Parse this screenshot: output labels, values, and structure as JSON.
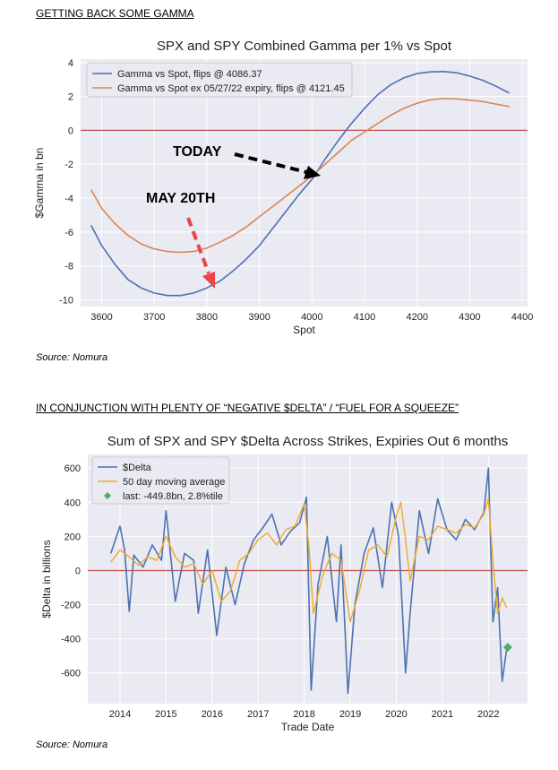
{
  "page": {
    "heading1": "GETTING BACK SOME GAMMA",
    "source1": "Source: Nomura",
    "heading2": "IN CONJUNCTION WITH PLENTY OF “NEGATIVE $DELTA” / “FUEL FOR A SQUEEZE”",
    "source2": "Source: Nomura"
  },
  "chart_data": [
    {
      "type": "line",
      "title": "SPX and SPY Combined Gamma per 1% vs Spot",
      "xlabel": "Spot",
      "ylabel": "$Gamma in bn",
      "xlim": [
        3560,
        4410
      ],
      "ylim": [
        -10.4,
        4.2
      ],
      "xticks": [
        3600,
        3700,
        3800,
        3900,
        4000,
        4100,
        4200,
        4300,
        4400
      ],
      "yticks": [
        -10,
        -8,
        -6,
        -4,
        -2,
        0,
        2,
        4
      ],
      "grid": true,
      "legend": "top-left",
      "zero_line": 0,
      "series": [
        {
          "name": "Gamma vs Spot, flips @ 4086.37",
          "color": "#4c72b0",
          "x": [
            3580,
            3600,
            3625,
            3650,
            3675,
            3700,
            3725,
            3750,
            3775,
            3800,
            3825,
            3850,
            3875,
            3900,
            3925,
            3950,
            3975,
            4000,
            4025,
            4050,
            4075,
            4100,
            4125,
            4150,
            4175,
            4200,
            4225,
            4250,
            4275,
            4300,
            4325,
            4350,
            4375
          ],
          "y": [
            -5.6,
            -6.8,
            -7.9,
            -8.8,
            -9.3,
            -9.6,
            -9.75,
            -9.75,
            -9.6,
            -9.3,
            -8.9,
            -8.3,
            -7.6,
            -6.8,
            -5.8,
            -4.8,
            -3.8,
            -2.9,
            -1.7,
            -0.6,
            0.4,
            1.3,
            2.1,
            2.7,
            3.1,
            3.35,
            3.45,
            3.47,
            3.4,
            3.2,
            2.95,
            2.6,
            2.2
          ]
        },
        {
          "name": "Gamma vs Spot ex 05/27/22 expiry, flips @ 4121.45",
          "color": "#dd8452",
          "x": [
            3580,
            3600,
            3625,
            3650,
            3675,
            3700,
            3725,
            3750,
            3775,
            3800,
            3825,
            3850,
            3875,
            3900,
            3925,
            3950,
            3975,
            4000,
            4025,
            4050,
            4075,
            4100,
            4125,
            4150,
            4175,
            4200,
            4225,
            4250,
            4275,
            4300,
            4325,
            4350,
            4375
          ],
          "y": [
            -3.5,
            -4.6,
            -5.5,
            -6.2,
            -6.7,
            -7.0,
            -7.15,
            -7.2,
            -7.15,
            -6.95,
            -6.6,
            -6.2,
            -5.7,
            -5.1,
            -4.5,
            -3.9,
            -3.3,
            -2.7,
            -2.0,
            -1.3,
            -0.6,
            -0.1,
            0.4,
            0.9,
            1.3,
            1.6,
            1.8,
            1.88,
            1.85,
            1.78,
            1.7,
            1.55,
            1.4
          ]
        }
      ],
      "annotations": [
        {
          "text": "TODAY",
          "color": "#000000"
        },
        {
          "text": "MAY 20TH",
          "color": "#e8464a"
        }
      ]
    },
    {
      "type": "line",
      "title": "Sum of SPX and SPY $Delta Across Strikes, Expiries Out 6 months",
      "xlabel": "Trade Date",
      "ylabel": "$Delta in billions",
      "xlim": [
        2013.3,
        2022.85
      ],
      "ylim": [
        -780,
        680
      ],
      "xticks": [
        2014,
        2015,
        2016,
        2017,
        2018,
        2019,
        2020,
        2021,
        2022
      ],
      "yticks": [
        -600,
        -400,
        -200,
        0,
        200,
        400,
        600
      ],
      "grid": true,
      "legend": "top-left",
      "zero_line": 0,
      "series": [
        {
          "name": "$Delta",
          "color": "#4c72b0",
          "x": [
            2013.8,
            2014.0,
            2014.1,
            2014.2,
            2014.3,
            2014.5,
            2014.7,
            2014.9,
            2015.0,
            2015.2,
            2015.4,
            2015.6,
            2015.7,
            2015.9,
            2016.1,
            2016.3,
            2016.5,
            2016.7,
            2016.9,
            2017.1,
            2017.3,
            2017.5,
            2017.7,
            2017.9,
            2018.05,
            2018.15,
            2018.3,
            2018.5,
            2018.7,
            2018.8,
            2018.95,
            2019.1,
            2019.3,
            2019.5,
            2019.7,
            2019.9,
            2020.05,
            2020.2,
            2020.3,
            2020.5,
            2020.7,
            2020.9,
            2021.1,
            2021.3,
            2021.5,
            2021.7,
            2021.9,
            2022.0,
            2022.1,
            2022.2,
            2022.3,
            2022.4
          ],
          "y": [
            100,
            260,
            120,
            -240,
            90,
            20,
            150,
            60,
            350,
            -180,
            100,
            60,
            -250,
            120,
            -380,
            20,
            -200,
            40,
            180,
            250,
            330,
            150,
            230,
            280,
            430,
            -700,
            -80,
            200,
            -300,
            150,
            -720,
            -200,
            100,
            250,
            -100,
            400,
            200,
            -600,
            -250,
            350,
            100,
            420,
            240,
            180,
            300,
            240,
            340,
            600,
            -300,
            -100,
            -650,
            -450
          ]
        },
        {
          "name": "50 day moving average",
          "color": "#f2a922",
          "x": [
            2013.8,
            2014.0,
            2014.2,
            2014.4,
            2014.6,
            2014.8,
            2015.0,
            2015.2,
            2015.4,
            2015.6,
            2015.8,
            2016.0,
            2016.2,
            2016.4,
            2016.6,
            2016.8,
            2017.0,
            2017.2,
            2017.4,
            2017.6,
            2017.8,
            2018.0,
            2018.1,
            2018.2,
            2018.4,
            2018.6,
            2018.8,
            2019.0,
            2019.2,
            2019.4,
            2019.6,
            2019.8,
            2020.0,
            2020.1,
            2020.2,
            2020.3,
            2020.5,
            2020.7,
            2020.9,
            2021.1,
            2021.3,
            2021.5,
            2021.7,
            2021.9,
            2022.0,
            2022.1,
            2022.2,
            2022.3,
            2022.4
          ],
          "y": [
            50,
            120,
            80,
            30,
            80,
            60,
            200,
            80,
            20,
            40,
            -80,
            0,
            -180,
            -120,
            60,
            100,
            180,
            220,
            150,
            240,
            260,
            390,
            150,
            -250,
            -30,
            100,
            60,
            -300,
            -120,
            120,
            150,
            80,
            320,
            400,
            180,
            -60,
            200,
            180,
            260,
            240,
            220,
            270,
            250,
            330,
            420,
            50,
            -250,
            -160,
            -220
          ]
        }
      ],
      "last_point": {
        "label": "last: -449.8bn, 2.8%tile",
        "x": 2022.42,
        "y": -449.8,
        "color": "#55a868"
      }
    }
  ]
}
